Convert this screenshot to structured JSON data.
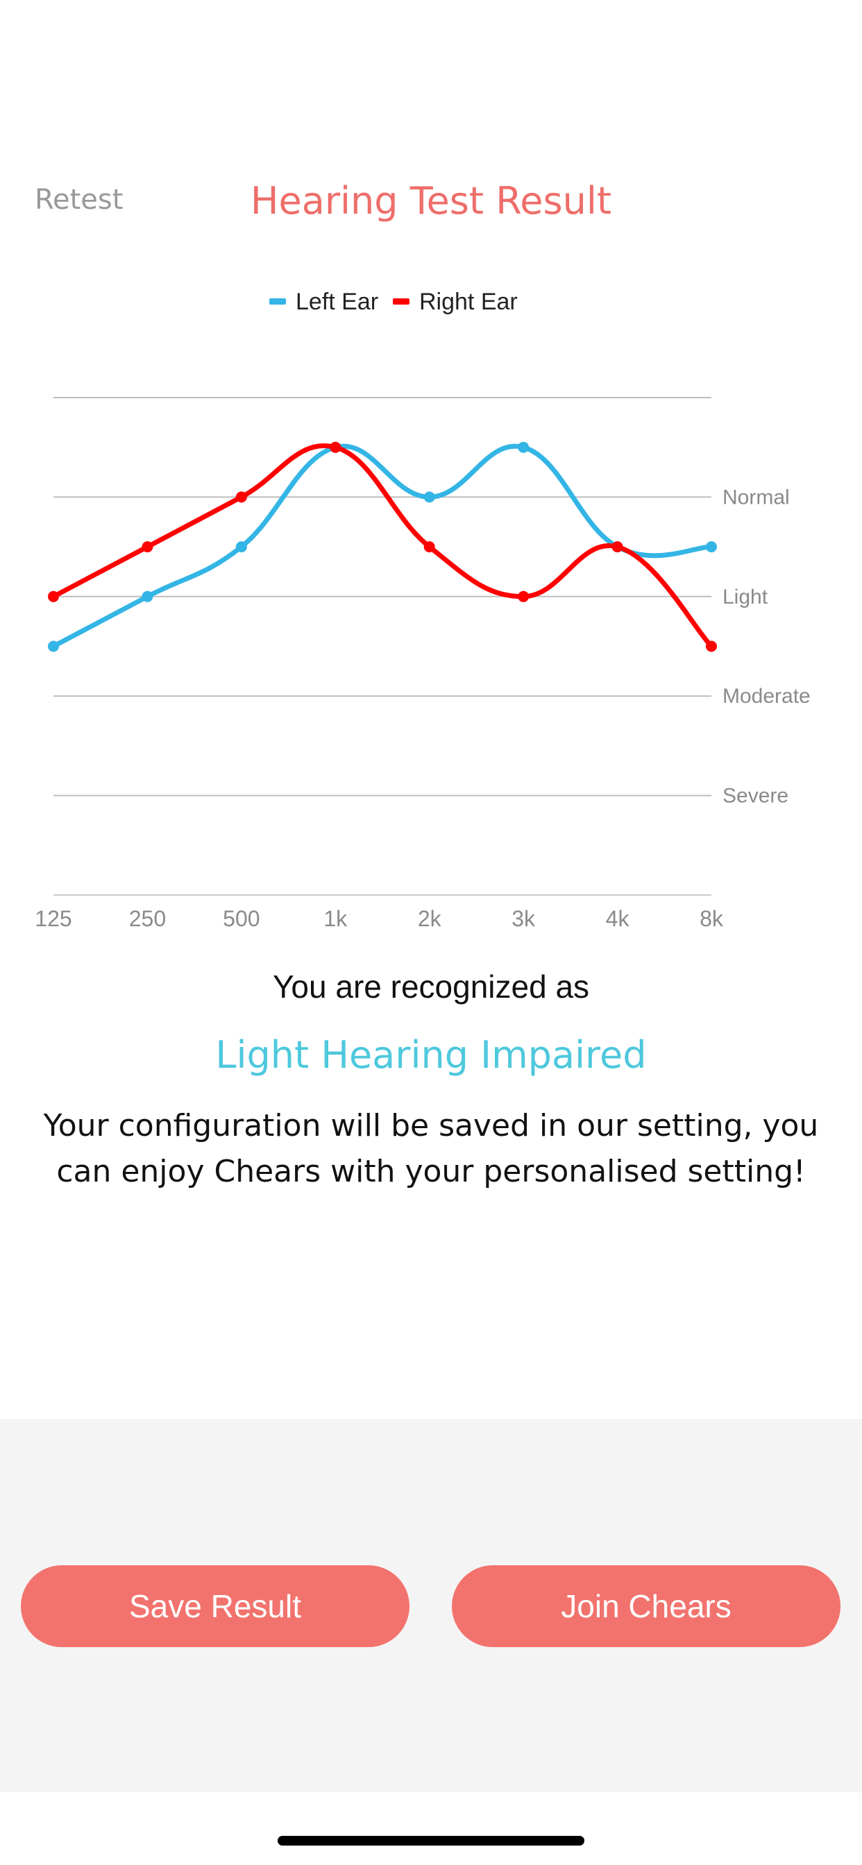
{
  "header": {
    "retest_label": "Retest",
    "title": "Hearing Test Result"
  },
  "chart_data": {
    "type": "line",
    "title": "",
    "xlabel": "",
    "ylabel": "",
    "categories": [
      "125",
      "250",
      "500",
      "1k",
      "2k",
      "3k",
      "4k",
      "8k"
    ],
    "y_levels": [
      "Normal",
      "Light",
      "Moderate",
      "Severe"
    ],
    "ylim": [
      0,
      5
    ],
    "series": [
      {
        "name": "Left Ear",
        "color": "#33b5e5",
        "values": [
          2.5,
          3.0,
          3.5,
          4.5,
          4.0,
          4.5,
          3.5,
          3.5
        ]
      },
      {
        "name": "Right Ear",
        "color": "#ff0000",
        "values": [
          3.0,
          3.5,
          4.0,
          4.5,
          3.5,
          3.0,
          3.5,
          2.5
        ]
      }
    ],
    "grid": true,
    "legend": "top-center"
  },
  "result": {
    "recognized_label": "You are recognized as",
    "condition": "Light Hearing Impaired",
    "description": "Your configuration will be saved in our setting, you can enjoy Chears with your personalised setting!"
  },
  "actions": {
    "save_label": "Save Result",
    "join_label": "Join Chears"
  }
}
